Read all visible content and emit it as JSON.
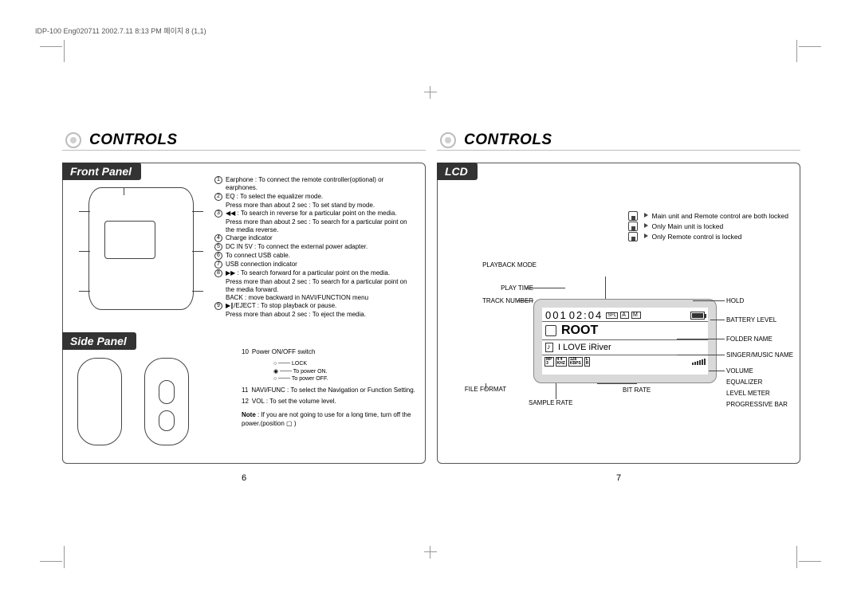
{
  "header": "IDP-100 Eng020711  2002.7.11 8:13 PM  페이지 8 (1,1)",
  "left": {
    "section": "CONTROLS",
    "tab_front": "Front Panel",
    "tab_side": "Side Panel",
    "pageno": "6",
    "front_items": [
      {
        "n": "1",
        "text": "Earphone : To connect the remote controller(optional) or earphones."
      },
      {
        "n": "2",
        "text": "EQ : To select the equalizer mode."
      },
      {
        "n": "",
        "text": "Press more than about 2 sec : To set stand by mode.",
        "sub": true
      },
      {
        "n": "3",
        "text": "◀◀ : To search in reverse for a particular point on the media."
      },
      {
        "n": "",
        "text": "Press more than about 2 sec : To search for a particular point on the media reverse.",
        "sub": true
      },
      {
        "n": "4",
        "text": "Charge indicator"
      },
      {
        "n": "5",
        "text": "DC IN 5V : To connect the external power adapter."
      },
      {
        "n": "6",
        "text": "To connect USB cable."
      },
      {
        "n": "7",
        "text": "USB connection indicator"
      },
      {
        "n": "8",
        "text": "▶▶ : To search forward for a particular point on the media."
      },
      {
        "n": "",
        "text": "Press more than about 2 sec : To search for a particular point on the media forward.",
        "sub": true
      },
      {
        "n": "",
        "text": "BACK : move backward in NAVI/FUNCTION menu",
        "sub": true
      },
      {
        "n": "9",
        "text": "▶∥/EJECT : To stop playback or pause."
      },
      {
        "n": "",
        "text": "Press more than about 2 sec : To eject the media.",
        "sub": true
      }
    ],
    "side_items": [
      {
        "n": "10",
        "text": "Power ON/OFF switch"
      },
      {
        "n": "11",
        "text": "NAVI/FUNC : To select the Navigation or Function Setting."
      },
      {
        "n": "12",
        "text": "VOL : To set the volume level."
      }
    ],
    "power_diag": {
      "lock": "LOCK",
      "on": "To power ON.",
      "off": "To power OFF."
    },
    "note_label": "Note",
    "note_text": ": If you are not going to use for a long time, turn off the power.(position  ▢ )"
  },
  "right": {
    "section": "CONTROLS",
    "tab": "LCD",
    "pageno": "7",
    "lock_legend": [
      "Main unit and Remote control are both locked",
      "Only Main unit is locked",
      "Only Remote control is locked"
    ],
    "lcd": {
      "track": "001",
      "time": "02:04",
      "sfl": "SFL",
      "root": "ROOT",
      "title": "I LOVE iRiver",
      "format_top": "MP",
      "format_bot": "3",
      "khz_top": "4 4",
      "khz_bot": "KHZ",
      "kbps_top": "128",
      "kbps_bot": "KBPS",
      "eq_top": "L",
      "eq_bot": "R"
    },
    "callouts": {
      "playback_mode": "PLAYBACK MODE",
      "play_time": "PLAY TIME",
      "track_number": "TRACK NUMBER",
      "file_format": "FILE FORMAT",
      "sample_rate": "SAMPLE RATE",
      "bit_rate": "BIT RATE",
      "hold": "HOLD",
      "battery": "BATTERY LEVEL",
      "folder": "FOLDER NAME",
      "singer": "SINGER/MUSIC NAME",
      "volume": "VOLUME",
      "equalizer": "EQUALIZER",
      "level": "LEVEL METER",
      "progress": "PROGRESSIVE BAR"
    }
  }
}
